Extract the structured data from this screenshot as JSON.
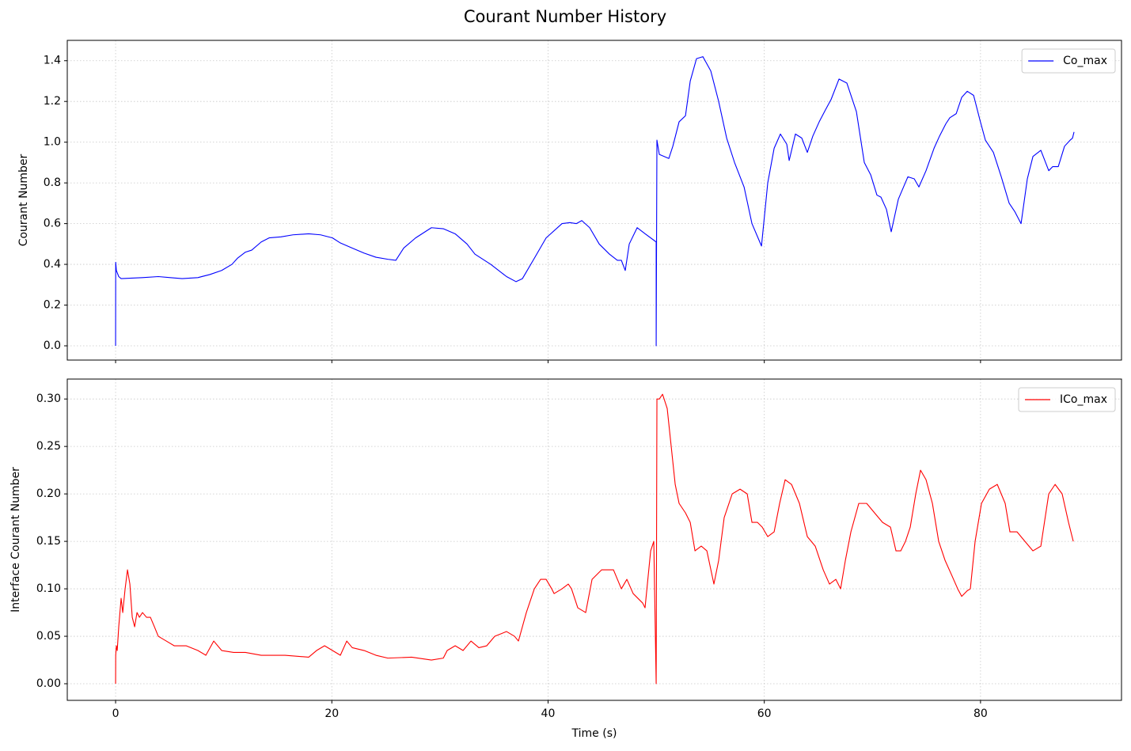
{
  "title": "Courant Number History",
  "chart_data": [
    {
      "type": "line",
      "ylabel": "Courant Number",
      "x": [
        0,
        0.01,
        0.07,
        0.29,
        0.51,
        2.49,
        3.95,
        5.05,
        6.15,
        7.61,
        8.71,
        9.81,
        10.76,
        11.27,
        12.01,
        12.59,
        13.47,
        14.2,
        15.3,
        16.4,
        17.86,
        18.96,
        20.06,
        20.79,
        21.89,
        22.99,
        24.08,
        25.18,
        25.92,
        26.65,
        27.75,
        29.21,
        30.31,
        31.41,
        32.5,
        33.24,
        34.7,
        36.16,
        37.04,
        37.63,
        38.73,
        39.82,
        41.29,
        42.02,
        42.61,
        43.12,
        43.85,
        44.73,
        45.68,
        46.41,
        46.78,
        47.14,
        47.51,
        48.24,
        48.98,
        50.0,
        50.0,
        50.07,
        50.29,
        51.17,
        51.54,
        52.12,
        52.71,
        53.15,
        53.73,
        54.32,
        55.05,
        55.78,
        56.52,
        57.25,
        58.13,
        58.86,
        59.74,
        60.32,
        60.91,
        61.49,
        62.08,
        62.3,
        62.88,
        63.47,
        63.98,
        64.49,
        65.08,
        65.67,
        66.18,
        66.91,
        67.64,
        68.52,
        69.25,
        69.84,
        70.42,
        70.79,
        71.3,
        71.74,
        72.4,
        73.28,
        73.87,
        74.3,
        74.96,
        75.7,
        76.21,
        76.79,
        77.16,
        77.75,
        78.26,
        78.77,
        79.36,
        79.94,
        80.45,
        81.19,
        81.92,
        82.65,
        83.16,
        83.75,
        84.33,
        84.85,
        85.58,
        86.31,
        86.68,
        87.19,
        87.77,
        88.29,
        88.51,
        88.65
      ],
      "series": [
        {
          "name": "Co_max",
          "color": "#0000ff",
          "values": [
            0,
            0.41,
            0.37,
            0.34,
            0.33,
            0.335,
            0.34,
            0.335,
            0.33,
            0.335,
            0.35,
            0.37,
            0.4,
            0.43,
            0.46,
            0.47,
            0.51,
            0.53,
            0.535,
            0.545,
            0.55,
            0.545,
            0.53,
            0.505,
            0.48,
            0.455,
            0.435,
            0.425,
            0.42,
            0.48,
            0.53,
            0.58,
            0.575,
            0.55,
            0.5,
            0.45,
            0.4,
            0.34,
            0.315,
            0.33,
            0.43,
            0.53,
            0.6,
            0.605,
            0.6,
            0.615,
            0.58,
            0.5,
            0.45,
            0.42,
            0.42,
            0.37,
            0.5,
            0.58,
            0.55,
            0.51,
            0,
            1.01,
            0.94,
            0.92,
            0.98,
            1.1,
            1.13,
            1.3,
            1.41,
            1.42,
            1.35,
            1.2,
            1.02,
            0.9,
            0.78,
            0.6,
            0.49,
            0.8,
            0.97,
            1.04,
            0.99,
            0.91,
            1.04,
            1.02,
            0.95,
            1.03,
            1.1,
            1.16,
            1.21,
            1.31,
            1.29,
            1.15,
            0.9,
            0.84,
            0.74,
            0.73,
            0.67,
            0.56,
            0.72,
            0.83,
            0.82,
            0.78,
            0.86,
            0.97,
            1.03,
            1.09,
            1.12,
            1.14,
            1.22,
            1.25,
            1.23,
            1.11,
            1.01,
            0.95,
            0.83,
            0.7,
            0.66,
            0.6,
            0.82,
            0.93,
            0.96,
            0.86,
            0.88,
            0.88,
            0.98,
            1.01,
            1.02,
            1.05
          ]
        }
      ],
      "xlim": [
        -4.47,
        93.04
      ],
      "ylim": [
        -0.07,
        1.5
      ],
      "xticks": [
        0,
        20,
        40,
        60,
        80
      ],
      "yticks": [
        {
          "value": 0,
          "label": "0.0"
        },
        {
          "value": 0.2,
          "label": "0.2"
        },
        {
          "value": 0.4,
          "label": "0.4"
        },
        {
          "value": 0.6,
          "label": "0.6"
        },
        {
          "value": 0.8,
          "label": "0.8"
        },
        {
          "value": 1.0,
          "label": "1.0"
        },
        {
          "value": 1.2,
          "label": "1.2"
        },
        {
          "value": 1.4,
          "label": "1.4"
        }
      ],
      "grid": true,
      "legend": "upper right"
    },
    {
      "type": "line",
      "xlabel": "Time (s)",
      "ylabel": "Interface Courant Number",
      "x": [
        0,
        0.01,
        0.07,
        0.15,
        0.29,
        0.51,
        0.66,
        0.88,
        1.1,
        1.32,
        1.54,
        1.76,
        1.98,
        2.2,
        2.49,
        2.86,
        3.22,
        3.59,
        3.95,
        4.69,
        5.42,
        6.52,
        7.61,
        8.35,
        9.08,
        9.81,
        10.91,
        12.01,
        13.47,
        15.67,
        17.86,
        18.59,
        19.33,
        20.06,
        20.79,
        21.38,
        21.89,
        22.99,
        24.08,
        25.18,
        27.38,
        29.21,
        30.31,
        30.67,
        31.41,
        32.14,
        32.87,
        33.6,
        34.33,
        35.07,
        36.16,
        36.9,
        37.26,
        37.99,
        38.73,
        39.31,
        39.82,
        40.34,
        40.56,
        41.29,
        41.87,
        42.17,
        42.75,
        43.48,
        44.07,
        44.95,
        46.05,
        46.78,
        47.29,
        47.87,
        48.75,
        48.97,
        49.49,
        49.78,
        50.0,
        50.07,
        50.29,
        50.59,
        51.02,
        51.39,
        51.76,
        52.12,
        52.71,
        53.15,
        53.59,
        54.17,
        54.69,
        55.34,
        55.78,
        56.29,
        57.03,
        57.76,
        58.42,
        58.86,
        59.37,
        59.81,
        60.32,
        60.91,
        61.42,
        61.93,
        62.52,
        63.25,
        63.98,
        64.71,
        65.45,
        66.03,
        66.62,
        67.06,
        67.5,
        68.01,
        68.74,
        69.47,
        70.2,
        70.94,
        71.67,
        72.18,
        72.62,
        73.06,
        73.5,
        74.01,
        74.45,
        74.96,
        75.55,
        76.13,
        76.72,
        77.31,
        77.89,
        78.26,
        78.77,
        79.06,
        79.5,
        80.09,
        80.82,
        81.55,
        82.28,
        82.72,
        83.38,
        84.11,
        84.85,
        85.58,
        86.31,
        86.9,
        87.55,
        88.14,
        88.58
      ],
      "series": [
        {
          "name": "ICo_max",
          "color": "#ff0000",
          "values": [
            0,
            0.03,
            0.04,
            0.035,
            0.06,
            0.09,
            0.075,
            0.1,
            0.12,
            0.105,
            0.07,
            0.06,
            0.075,
            0.07,
            0.075,
            0.07,
            0.07,
            0.06,
            0.05,
            0.045,
            0.04,
            0.04,
            0.035,
            0.03,
            0.045,
            0.035,
            0.033,
            0.033,
            0.03,
            0.03,
            0.028,
            0.035,
            0.04,
            0.035,
            0.03,
            0.045,
            0.038,
            0.035,
            0.03,
            0.027,
            0.028,
            0.025,
            0.027,
            0.035,
            0.04,
            0.035,
            0.045,
            0.038,
            0.04,
            0.05,
            0.055,
            0.05,
            0.045,
            0.075,
            0.1,
            0.11,
            0.11,
            0.1,
            0.095,
            0.1,
            0.105,
            0.1,
            0.08,
            0.075,
            0.11,
            0.12,
            0.12,
            0.1,
            0.11,
            0.095,
            0.085,
            0.08,
            0.14,
            0.15,
            0,
            0.3,
            0.3,
            0.305,
            0.29,
            0.25,
            0.21,
            0.19,
            0.18,
            0.17,
            0.14,
            0.145,
            0.14,
            0.105,
            0.13,
            0.175,
            0.2,
            0.205,
            0.2,
            0.17,
            0.17,
            0.165,
            0.155,
            0.16,
            0.19,
            0.215,
            0.21,
            0.19,
            0.155,
            0.145,
            0.12,
            0.105,
            0.11,
            0.1,
            0.13,
            0.16,
            0.19,
            0.19,
            0.18,
            0.17,
            0.165,
            0.14,
            0.14,
            0.15,
            0.165,
            0.2,
            0.225,
            0.215,
            0.19,
            0.15,
            0.13,
            0.115,
            0.1,
            0.092,
            0.098,
            0.1,
            0.15,
            0.19,
            0.205,
            0.21,
            0.19,
            0.16,
            0.16,
            0.15,
            0.14,
            0.145,
            0.2,
            0.21,
            0.2,
            0.17,
            0.15
          ]
        }
      ],
      "xlim": [
        -4.47,
        93.04
      ],
      "ylim": [
        -0.0175,
        0.321
      ],
      "xticks": [
        0,
        20,
        40,
        60,
        80
      ],
      "yticks": [
        {
          "value": 0,
          "label": "0.00"
        },
        {
          "value": 0.05,
          "label": "0.05"
        },
        {
          "value": 0.1,
          "label": "0.10"
        },
        {
          "value": 0.15,
          "label": "0.15"
        },
        {
          "value": 0.2,
          "label": "0.20"
        },
        {
          "value": 0.25,
          "label": "0.25"
        },
        {
          "value": 0.3,
          "label": "0.30"
        }
      ],
      "grid": true,
      "legend": "upper right"
    }
  ]
}
